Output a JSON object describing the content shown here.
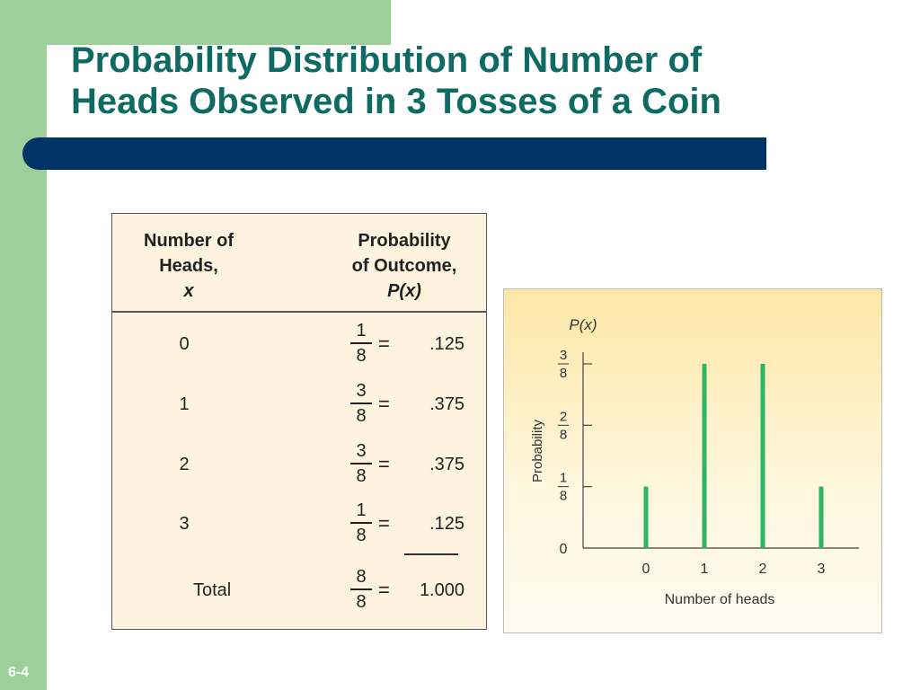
{
  "slide": {
    "title_line1": "Probability Distribution of Number of",
    "title_line2": "Heads Observed in 3 Tosses of a Coin",
    "slide_number": "6-4",
    "colors": {
      "title": "#0d6b63",
      "band": "#9dcf9a",
      "rule": "#003366",
      "bar": "#2fb563"
    }
  },
  "table": {
    "header_left_1": "Number of",
    "header_left_2": "Heads,",
    "header_left_var": "x",
    "header_right_1": "Probability",
    "header_right_2": "of Outcome,",
    "header_right_var": "P(x)",
    "rows": [
      {
        "x": "0",
        "num": "1",
        "den": "8",
        "eq": "=",
        "p": ".125"
      },
      {
        "x": "1",
        "num": "3",
        "den": "8",
        "eq": "=",
        "p": ".375"
      },
      {
        "x": "2",
        "num": "3",
        "den": "8",
        "eq": "=",
        "p": ".375"
      },
      {
        "x": "3",
        "num": "1",
        "den": "8",
        "eq": "=",
        "p": ".125"
      }
    ],
    "total": {
      "label": "Total",
      "num": "8",
      "den": "8",
      "eq": "=",
      "p": "1.000"
    }
  },
  "chart_data": {
    "type": "bar",
    "categories": [
      "0",
      "1",
      "2",
      "3"
    ],
    "values": [
      0.125,
      0.375,
      0.375,
      0.125
    ],
    "xlabel": "Number of heads",
    "ylabel": "Probability",
    "y_axis_title": "P(x)",
    "ylim": [
      0,
      0.375
    ],
    "yticks": [
      {
        "value": 0,
        "label": "0"
      },
      {
        "value": 0.125,
        "num": "1",
        "den": "8"
      },
      {
        "value": 0.25,
        "num": "2",
        "den": "8"
      },
      {
        "value": 0.375,
        "num": "3",
        "den": "8"
      }
    ],
    "grid": false
  }
}
